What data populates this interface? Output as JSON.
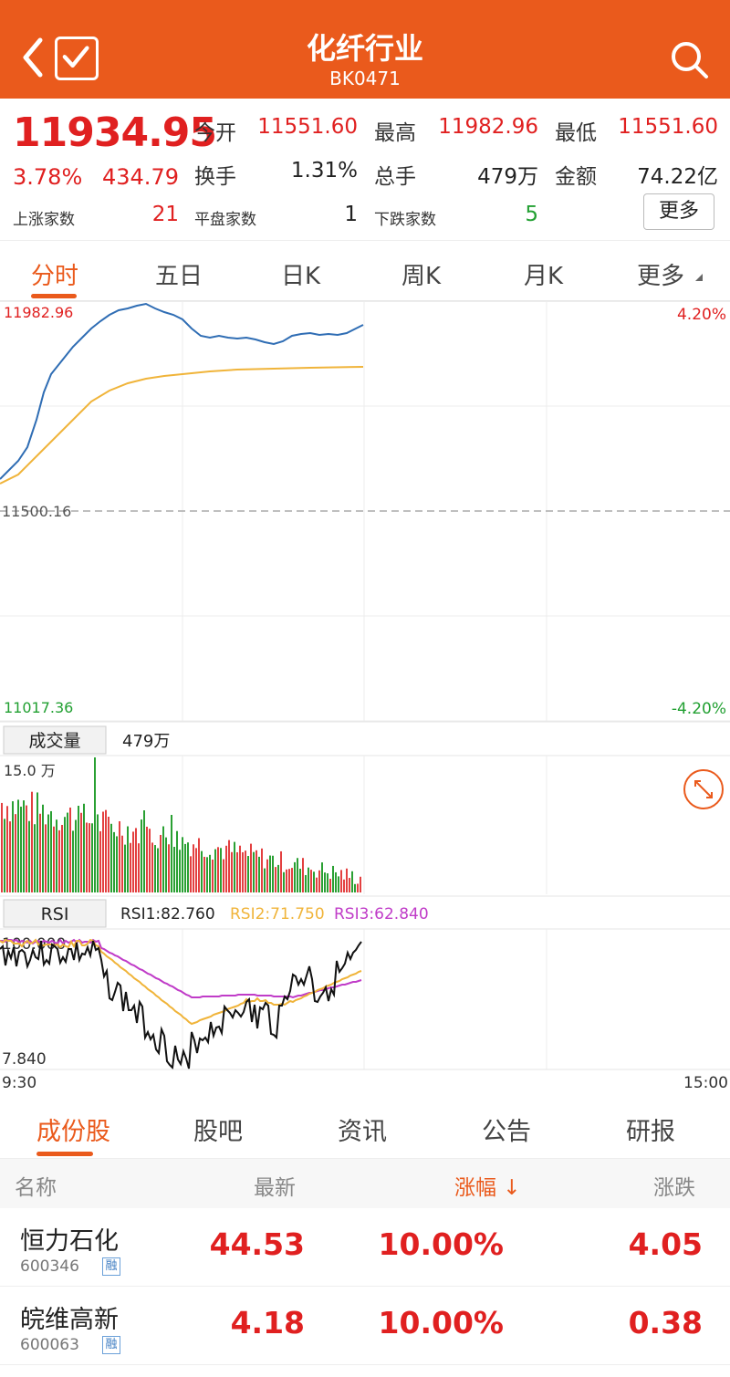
{
  "header": {
    "title": "化纤行业",
    "code": "BK0471"
  },
  "quote": {
    "price": "11934.95",
    "change_pct": "3.78%",
    "change": "434.79",
    "open_label": "今开",
    "open": "11551.60",
    "high_label": "最高",
    "high": "11982.96",
    "low_label": "最低",
    "low": "11551.60",
    "turnover_label": "换手",
    "turnover": "1.31%",
    "volume_label": "总手",
    "volume": "479万",
    "amount_label": "金额",
    "amount": "74.22亿",
    "up_label": "上涨家数",
    "up_count": "21",
    "flat_label": "平盘家数",
    "flat_count": "1",
    "down_label": "下跌家数",
    "down_count": "5",
    "more_button": "更多"
  },
  "tabs": [
    "分时",
    "五日",
    "日K",
    "周K",
    "月K",
    "更多"
  ],
  "intraday": {
    "y_max": "11982.96",
    "y_mid": "11500.16",
    "y_min": "11017.36",
    "pct_max": "4.20%",
    "pct_min": "-4.20%",
    "volume_label": "成交量",
    "volume_value": "479万",
    "volume_max": "15.0 万",
    "rsi_label": "RSI",
    "rsi1": "RSI1:82.760",
    "rsi2": "RSI2:71.750",
    "rsi3": "RSI3:62.840",
    "rsi_max": "100.000",
    "rsi_min": "7.840",
    "time_start": "9:30",
    "time_end": "15:00",
    "colors": {
      "price_line": "#2f6db4",
      "avg_line": "#f0b43a",
      "rsi1": "#111111",
      "rsi2": "#f0b43a",
      "rsi3": "#c03cc8",
      "vol_up": "#e34040",
      "vol_down": "#2aa033"
    }
  },
  "subtabs": [
    "成份股",
    "股吧",
    "资讯",
    "公告",
    "研报"
  ],
  "table": {
    "headers": [
      "名称",
      "最新",
      "涨幅 ↓",
      "涨跌"
    ],
    "rows": [
      {
        "name": "恒力石化",
        "code": "600346",
        "tag": "融",
        "last": "44.53",
        "pct": "10.00%",
        "chg": "4.05"
      },
      {
        "name": "皖维高新",
        "code": "600063",
        "tag": "融",
        "last": "4.18",
        "pct": "10.00%",
        "chg": "0.38"
      }
    ]
  }
}
